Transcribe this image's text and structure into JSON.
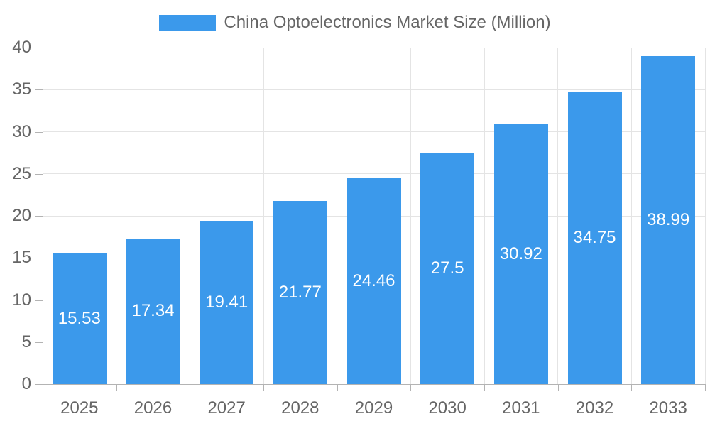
{
  "chart_data": {
    "type": "bar",
    "title": "China Optoelectronics Market Size (Million)",
    "legend": [
      {
        "label": "China Optoelectronics Market Size (Million)",
        "color": "#3B99EB"
      }
    ],
    "legend_position": "top-center",
    "categories": [
      "2025",
      "2026",
      "2027",
      "2028",
      "2029",
      "2030",
      "2031",
      "2032",
      "2033"
    ],
    "series": [
      {
        "name": "China Optoelectronics Market Size (Million)",
        "values": [
          15.53,
          17.34,
          19.41,
          21.77,
          24.46,
          27.5,
          30.92,
          34.75,
          38.99
        ]
      }
    ],
    "value_labels": [
      "15.53",
      "17.34",
      "19.41",
      "21.77",
      "24.46",
      "27.5",
      "30.92",
      "34.75",
      "38.99"
    ],
    "xlabel": "",
    "ylabel": "",
    "ylim": [
      0,
      40
    ],
    "yticks": [
      0,
      5,
      10,
      15,
      20,
      25,
      30,
      35,
      40
    ],
    "grid": true,
    "colors": {
      "bar": "#3B99EB",
      "value_label": "#FFFFFF",
      "axis_label": "#666666",
      "legend_label": "#666666",
      "grid_line": "#E4E4E4",
      "axis_line": "#B3B3B3"
    }
  }
}
